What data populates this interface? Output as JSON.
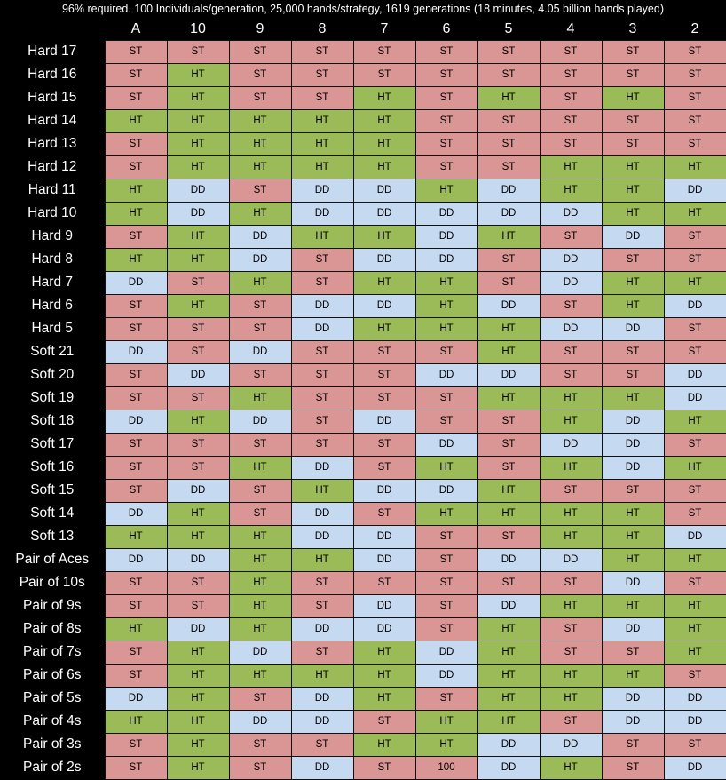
{
  "title": "96% required. 100 Individuals/generation, 25,000 hands/strategy, 1619 generations (18 minutes, 4.05 billion hands played)",
  "colors": {
    "ST": "#da9694",
    "HT": "#9bbb59",
    "DD": "#c5d9f1",
    "100": "#da9694"
  },
  "columns": [
    "A",
    "10",
    "9",
    "8",
    "7",
    "6",
    "5",
    "4",
    "3",
    "2"
  ],
  "rows": [
    {
      "label": "Hard 17",
      "cells": [
        "ST",
        "ST",
        "ST",
        "ST",
        "ST",
        "ST",
        "ST",
        "ST",
        "ST",
        "ST"
      ]
    },
    {
      "label": "Hard 16",
      "cells": [
        "ST",
        "HT",
        "ST",
        "ST",
        "ST",
        "ST",
        "ST",
        "ST",
        "ST",
        "ST"
      ]
    },
    {
      "label": "Hard 15",
      "cells": [
        "ST",
        "HT",
        "ST",
        "ST",
        "HT",
        "ST",
        "HT",
        "ST",
        "HT",
        "ST"
      ]
    },
    {
      "label": "Hard 14",
      "cells": [
        "HT",
        "HT",
        "HT",
        "HT",
        "HT",
        "ST",
        "ST",
        "ST",
        "ST",
        "ST"
      ]
    },
    {
      "label": "Hard 13",
      "cells": [
        "ST",
        "HT",
        "HT",
        "HT",
        "HT",
        "ST",
        "ST",
        "ST",
        "ST",
        "ST"
      ]
    },
    {
      "label": "Hard 12",
      "cells": [
        "ST",
        "HT",
        "HT",
        "HT",
        "HT",
        "ST",
        "ST",
        "HT",
        "HT",
        "HT"
      ]
    },
    {
      "label": "Hard 11",
      "cells": [
        "HT",
        "DD",
        "ST",
        "DD",
        "DD",
        "HT",
        "DD",
        "HT",
        "HT",
        "DD"
      ]
    },
    {
      "label": "Hard 10",
      "cells": [
        "HT",
        "DD",
        "HT",
        "DD",
        "DD",
        "DD",
        "DD",
        "DD",
        "HT",
        "HT"
      ]
    },
    {
      "label": "Hard 9",
      "cells": [
        "ST",
        "HT",
        "DD",
        "HT",
        "HT",
        "DD",
        "HT",
        "ST",
        "DD",
        "ST"
      ]
    },
    {
      "label": "Hard 8",
      "cells": [
        "HT",
        "HT",
        "DD",
        "ST",
        "DD",
        "DD",
        "ST",
        "DD",
        "ST",
        "ST"
      ]
    },
    {
      "label": "Hard 7",
      "cells": [
        "DD",
        "ST",
        "HT",
        "ST",
        "HT",
        "HT",
        "ST",
        "DD",
        "HT",
        "HT"
      ]
    },
    {
      "label": "Hard 6",
      "cells": [
        "ST",
        "HT",
        "ST",
        "DD",
        "DD",
        "HT",
        "DD",
        "ST",
        "HT",
        "DD"
      ]
    },
    {
      "label": "Hard 5",
      "cells": [
        "ST",
        "ST",
        "ST",
        "DD",
        "HT",
        "HT",
        "HT",
        "DD",
        "DD",
        "ST"
      ]
    },
    {
      "label": "Soft 21",
      "cells": [
        "DD",
        "ST",
        "DD",
        "ST",
        "ST",
        "ST",
        "HT",
        "ST",
        "ST",
        "ST"
      ]
    },
    {
      "label": "Soft 20",
      "cells": [
        "ST",
        "DD",
        "ST",
        "ST",
        "ST",
        "DD",
        "DD",
        "ST",
        "ST",
        "DD"
      ]
    },
    {
      "label": "Soft 19",
      "cells": [
        "ST",
        "ST",
        "HT",
        "ST",
        "ST",
        "ST",
        "HT",
        "HT",
        "HT",
        "DD"
      ]
    },
    {
      "label": "Soft 18",
      "cells": [
        "DD",
        "HT",
        "DD",
        "ST",
        "DD",
        "ST",
        "ST",
        "HT",
        "DD",
        "HT"
      ]
    },
    {
      "label": "Soft 17",
      "cells": [
        "ST",
        "ST",
        "ST",
        "ST",
        "ST",
        "DD",
        "ST",
        "DD",
        "DD",
        "ST"
      ]
    },
    {
      "label": "Soft 16",
      "cells": [
        "ST",
        "ST",
        "HT",
        "DD",
        "ST",
        "HT",
        "ST",
        "HT",
        "DD",
        "HT"
      ]
    },
    {
      "label": "Soft 15",
      "cells": [
        "ST",
        "DD",
        "ST",
        "HT",
        "DD",
        "DD",
        "HT",
        "ST",
        "ST",
        "ST"
      ]
    },
    {
      "label": "Soft 14",
      "cells": [
        "DD",
        "HT",
        "ST",
        "DD",
        "ST",
        "HT",
        "HT",
        "HT",
        "HT",
        "ST"
      ]
    },
    {
      "label": "Soft 13",
      "cells": [
        "HT",
        "HT",
        "HT",
        "DD",
        "DD",
        "ST",
        "ST",
        "HT",
        "HT",
        "DD"
      ]
    },
    {
      "label": "Pair of Aces",
      "cells": [
        "DD",
        "DD",
        "HT",
        "HT",
        "DD",
        "ST",
        "DD",
        "DD",
        "HT",
        "HT"
      ]
    },
    {
      "label": "Pair of 10s",
      "cells": [
        "ST",
        "ST",
        "HT",
        "ST",
        "ST",
        "ST",
        "ST",
        "ST",
        "DD",
        "ST"
      ]
    },
    {
      "label": "Pair of 9s",
      "cells": [
        "ST",
        "ST",
        "HT",
        "ST",
        "DD",
        "ST",
        "DD",
        "HT",
        "HT",
        "HT"
      ]
    },
    {
      "label": "Pair of 8s",
      "cells": [
        "HT",
        "DD",
        "HT",
        "DD",
        "DD",
        "ST",
        "HT",
        "ST",
        "DD",
        "HT"
      ]
    },
    {
      "label": "Pair of 7s",
      "cells": [
        "ST",
        "HT",
        "DD",
        "ST",
        "HT",
        "DD",
        "HT",
        "ST",
        "ST",
        "HT"
      ]
    },
    {
      "label": "Pair of 6s",
      "cells": [
        "ST",
        "HT",
        "HT",
        "HT",
        "HT",
        "DD",
        "HT",
        "HT",
        "HT",
        "ST"
      ]
    },
    {
      "label": "Pair of 5s",
      "cells": [
        "DD",
        "HT",
        "ST",
        "DD",
        "HT",
        "ST",
        "HT",
        "HT",
        "DD",
        "DD"
      ]
    },
    {
      "label": "Pair of 4s",
      "cells": [
        "HT",
        "HT",
        "DD",
        "DD",
        "ST",
        "HT",
        "HT",
        "ST",
        "DD",
        "DD"
      ]
    },
    {
      "label": "Pair of  3s",
      "cells": [
        "ST",
        "HT",
        "ST",
        "ST",
        "HT",
        "HT",
        "DD",
        "DD",
        "ST",
        "ST"
      ]
    },
    {
      "label": "Pair of 2s",
      "cells": [
        "ST",
        "HT",
        "ST",
        "DD",
        "ST",
        "100",
        "DD",
        "HT",
        "ST",
        "DD"
      ]
    }
  ]
}
